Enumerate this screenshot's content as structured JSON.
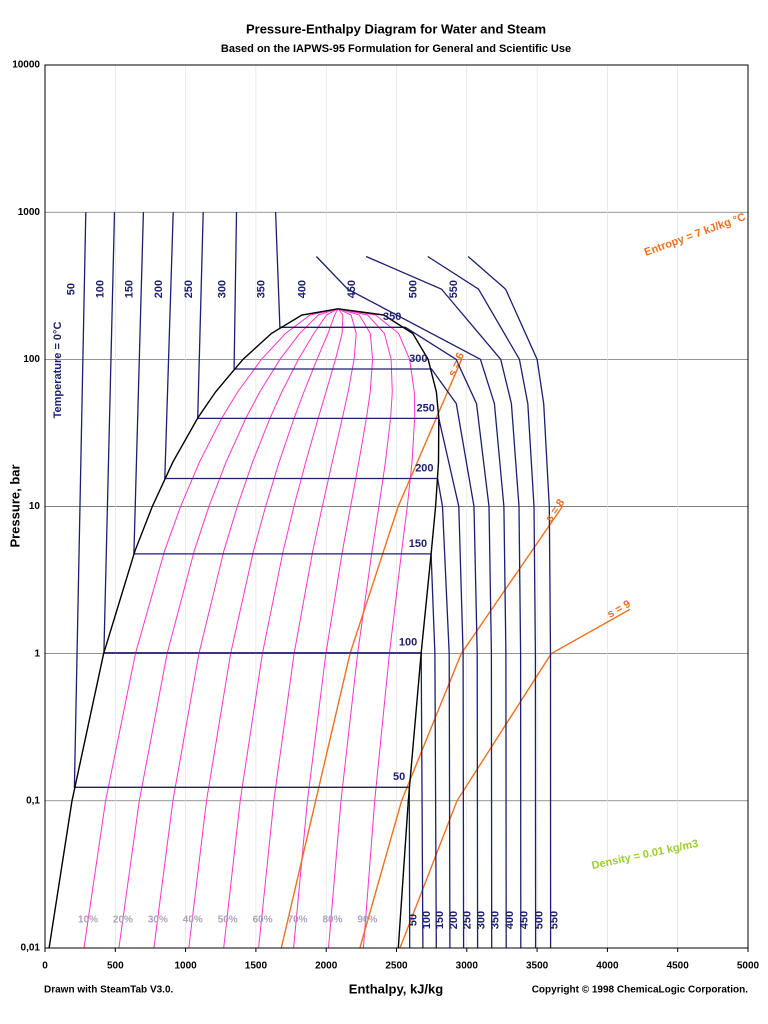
{
  "chart_data": {
    "type": "line",
    "title": "Pressure-Enthalpy Diagram for Water and Steam",
    "subtitle": "Based on the IAPWS-95 Formulation for General and Scientific Use",
    "xlabel": "Enthalpy, kJ/kg",
    "ylabel": "Pressure, bar",
    "footer_left": "Drawn with SteamTab V3.0.",
    "footer_right": "Copyright © 1998 ChemicaLogic Corporation.",
    "annotations": [
      "Temperature = 0°C",
      "Entropy = 7 kJ/kg °C",
      "Density = 0.01 kg/m3"
    ],
    "xlim": [
      0,
      5000
    ],
    "xticks": [
      0,
      500,
      1000,
      1500,
      2000,
      2500,
      3000,
      3500,
      4000,
      4500,
      5000
    ],
    "ylim": [
      0.01,
      10000
    ],
    "log_y": true,
    "grid": true,
    "yticks": [
      {
        "value": 0.01,
        "label": "0,01"
      },
      {
        "value": 0.1,
        "label": "0,1"
      },
      1,
      10,
      100,
      1000,
      10000
    ],
    "saturation": [
      {
        "color": "#000000",
        "x": [
          29,
          192,
          417,
          640,
          763,
          909,
          1087,
          1213,
          1408,
          1611,
          1827,
          2084
        ],
        "values": [
          0.01,
          0.1,
          1,
          5,
          10,
          20,
          40,
          60,
          100,
          150,
          200,
          220.6
        ]
      },
      {
        "color": "#000000",
        "x": [
          2513,
          2584,
          2675,
          2748,
          2778,
          2799,
          2801,
          2784,
          2725,
          2615,
          2410,
          2084
        ],
        "values": [
          0.01,
          0.1,
          1,
          5,
          10,
          20,
          40,
          60,
          100,
          150,
          200,
          220.6
        ]
      }
    ],
    "quality_color": "#ff33cc",
    "quality": [
      {
        "value": 10,
        "label": "10%"
      },
      {
        "value": 20,
        "label": "20%"
      },
      {
        "value": 30,
        "label": "30%"
      },
      {
        "value": 40,
        "label": "40%"
      },
      {
        "value": 50,
        "label": "50%"
      },
      {
        "value": 60,
        "label": "60%"
      },
      {
        "value": 70,
        "label": "70%"
      },
      {
        "value": 80,
        "label": "80%"
      },
      {
        "value": 90,
        "label": "90%"
      }
    ],
    "isotherms": [
      {
        "name": "50",
        "color": "#1c1f6e",
        "x": [
          290,
          209,
          2591,
          2594
        ],
        "values": [
          1000,
          0.1235,
          0.1235,
          0.01
        ]
      },
      {
        "name": "100",
        "color": "#1c1f6e",
        "x": [
          494,
          419,
          2676,
          2688
        ],
        "values": [
          1000,
          1.013,
          1.013,
          0.01
        ]
      },
      {
        "name": "150",
        "color": "#1c1f6e",
        "x": [
          700,
          632,
          2746,
          2773,
          2783
        ],
        "values": [
          1000,
          4.76,
          4.76,
          1,
          0.01
        ]
      },
      {
        "name": "200",
        "color": "#1c1f6e",
        "x": [
          912,
          852,
          2792,
          2827,
          2875,
          2880
        ],
        "values": [
          1000,
          15.5,
          15.5,
          10,
          1,
          0.01
        ]
      },
      {
        "name": "250",
        "color": "#1c1f6e",
        "x": [
          1125,
          1086,
          2801,
          2943,
          2974,
          2977
        ],
        "values": [
          1000,
          39.7,
          39.7,
          10,
          1,
          0.01
        ]
      },
      {
        "name": "300",
        "color": "#1c1f6e",
        "x": [
          1362,
          1345,
          2749,
          2925,
          3051,
          3074,
          3077
        ],
        "values": [
          1000,
          85.9,
          85.9,
          50,
          10,
          1,
          0.01
        ]
      },
      {
        "name": "350",
        "color": "#1c1f6e",
        "x": [
          1640,
          1671,
          2563,
          2924,
          3069,
          3158,
          3175,
          3177
        ],
        "values": [
          1000,
          165,
          165,
          100,
          50,
          10,
          1,
          0.01
        ]
      },
      {
        "name": "400",
        "color": "#1c1f6e",
        "x": [
          1930,
          2152,
          3097,
          3196,
          3264,
          3278,
          3280
        ],
        "values": [
          500,
          300,
          100,
          50,
          10,
          1,
          0.01
        ]
      },
      {
        "name": "450",
        "color": "#1c1f6e",
        "x": [
          2284,
          2820,
          3241,
          3317,
          3371,
          3383,
          3384
        ],
        "values": [
          500,
          300,
          100,
          50,
          10,
          1,
          0.01
        ]
      },
      {
        "name": "500",
        "color": "#1c1f6e",
        "x": [
          2722,
          3083,
          3374,
          3434,
          3478,
          3488,
          3489
        ],
        "values": [
          500,
          300,
          100,
          50,
          10,
          1,
          0.01
        ]
      },
      {
        "name": "550",
        "color": "#1c1f6e",
        "x": [
          3009,
          3276,
          3500,
          3547,
          3587,
          3595,
          3596
        ],
        "values": [
          500,
          300,
          100,
          50,
          10,
          1,
          0.01
        ]
      }
    ],
    "isentropes": [
      {
        "name": "s = 6",
        "color": "#f07020",
        "x": [
          1681,
          2169,
          2512,
          2963
        ],
        "values": [
          0.01,
          1,
          10,
          100
        ]
      },
      {
        "name": "s = 8",
        "color": "#f07020",
        "x": [
          2240,
          2536,
          2960,
          3680
        ],
        "values": [
          0.01,
          0.1,
          1,
          10
        ]
      },
      {
        "name": "s = 9",
        "color": "#f07020",
        "x": [
          2525,
          2930,
          3600,
          4160
        ],
        "values": [
          0.01,
          0.1,
          1,
          2
        ]
      }
    ]
  }
}
